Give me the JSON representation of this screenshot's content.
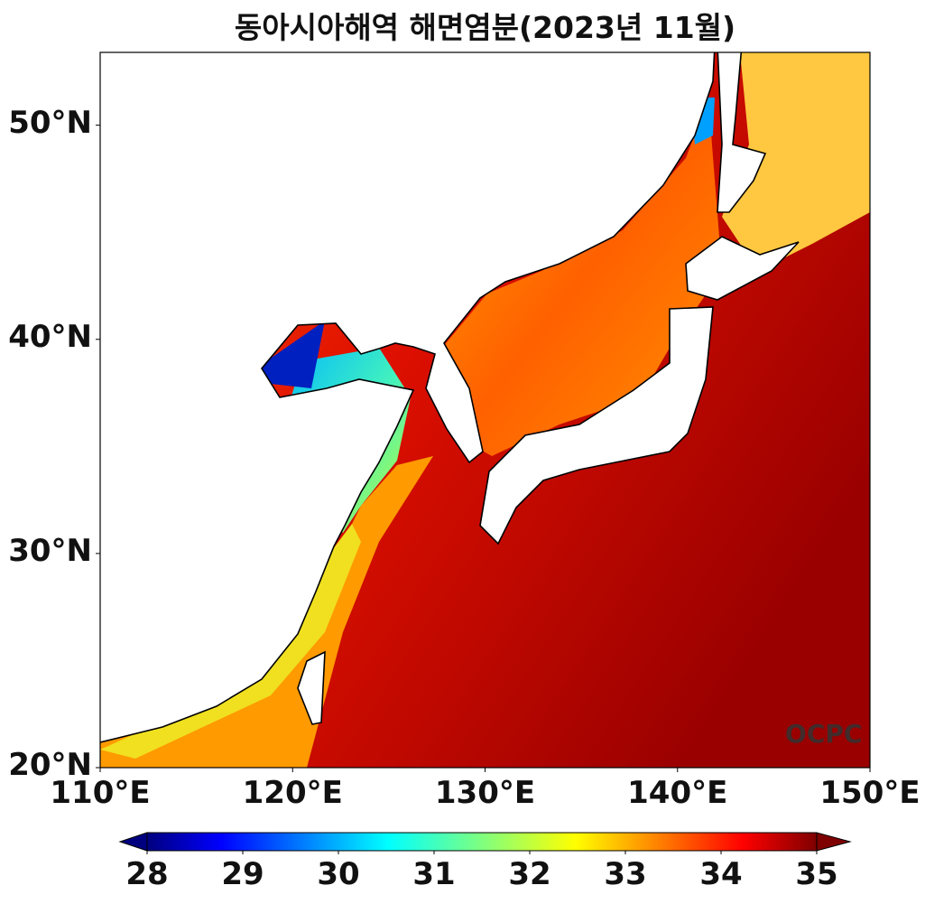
{
  "title": "동아시아해역 해면염분(2023년 11월)",
  "watermark": "OCPC",
  "map": {
    "variable": "sea surface salinity",
    "lon_range": [
      110,
      150
    ],
    "lat_range": [
      20,
      53.4
    ],
    "lat_ticks": [
      {
        "value": 20,
        "label": "20°N"
      },
      {
        "value": 30,
        "label": "30°N"
      },
      {
        "value": 40,
        "label": "40°N"
      },
      {
        "value": 50,
        "label": "50°N"
      }
    ],
    "lon_ticks": [
      {
        "value": 110,
        "label": "110°E"
      },
      {
        "value": 120,
        "label": "120°E"
      },
      {
        "value": 130,
        "label": "130°E"
      },
      {
        "value": 140,
        "label": "140°E"
      },
      {
        "value": 150,
        "label": "150°E"
      }
    ]
  },
  "colorbar": {
    "min": 28,
    "max": 35,
    "extend": "both",
    "colormap": "jet",
    "ticks": [
      {
        "value": 28,
        "label": "28"
      },
      {
        "value": 29,
        "label": "29"
      },
      {
        "value": 30,
        "label": "30"
      },
      {
        "value": 31,
        "label": "31"
      },
      {
        "value": 32,
        "label": "32"
      },
      {
        "value": 33,
        "label": "33"
      },
      {
        "value": 34,
        "label": "34"
      },
      {
        "value": 35,
        "label": "35"
      }
    ],
    "under_color": "#00007f",
    "over_color": "#7f0000"
  }
}
